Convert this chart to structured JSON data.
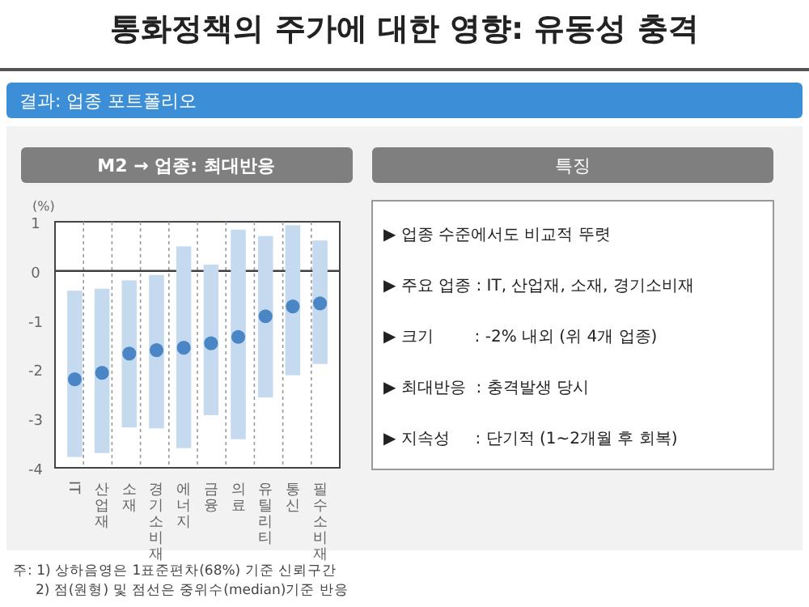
{
  "chart_data": [
    {
      "type": "bar",
      "title": "통화정책의 주가에 대한 영향: 유동성 충격",
      "subtitle": "결과: 업종 포트폴리오",
      "ylabel": "(%)",
      "categories": [
        "IT",
        "산업재",
        "소재",
        "경기소비재",
        "에너지",
        "금융",
        "의료",
        "유틸리티",
        "통신",
        "필수소비재"
      ],
      "series": [
        {
          "type": "bar",
          "color": "#c6daef",
          "base": [
            -3.78,
            -3.7,
            -3.18,
            -3.2,
            -3.6,
            -2.93,
            -3.42,
            -2.57,
            -2.12,
            -1.89
          ],
          "values": [
            3.38,
            3.34,
            2.99,
            3.12,
            4.1,
            3.06,
            4.26,
            3.28,
            3.05,
            2.51
          ]
        },
        {
          "type": "scatter",
          "color": "#4a86c5",
          "marker": "circle",
          "x": [
            "IT",
            "산업재",
            "소재",
            "경기소비재",
            "에너지",
            "금융",
            "의료",
            "유틸리티",
            "통신",
            "필수소비재"
          ],
          "values": [
            -2.2,
            -2.07,
            -1.68,
            -1.61,
            -1.56,
            -1.47,
            -1.34,
            -0.92,
            -0.72,
            -0.66
          ]
        }
      ],
      "ylim": [
        -4,
        1
      ],
      "yticks": [
        1,
        0,
        -1,
        -2,
        -3,
        -4
      ],
      "grid": "x",
      "ref_lines": [
        {
          "axis": "y",
          "value": 0,
          "color": "#404040"
        }
      ],
      "annotations": [
        "M2 → 업종: 최대반응",
        "주: 1) 상하음영은 1표준편차(68%) 기준 신뢰구간",
        "2) 점(원형) 및 점선은 중위수(median)기준 반응"
      ]
    },
    {
      "type": "other",
      "title": "특징",
      "annotations": [
        "▶ 업종 수준에서도 비교적 뚜렷",
        "▶ 주요 업종 : IT, 산업재, 소재, 경기소비재",
        "▶ 크기        : -2% 내외 (위 4개 업종)",
        "▶ 최대반응  : 충격발생 당시",
        "▶ 지속성     : 단기적 (1~2개월 후 회복)"
      ]
    }
  ]
}
